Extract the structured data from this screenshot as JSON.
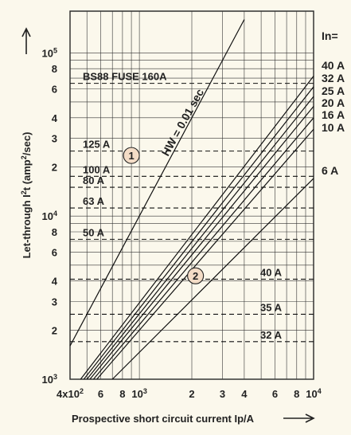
{
  "chart_data": {
    "type": "line",
    "x_scale": "log",
    "y_scale": "log",
    "xlim": [
      400,
      10000
    ],
    "ylim": [
      1000,
      180000
    ],
    "xlabel": "Prospective short circuit current Ip/A",
    "ylabel_main": "Let-through I",
    "ylabel_sup": "2",
    "ylabel_rest": "t (amp",
    "ylabel_sup2": "2",
    "ylabel_end": "/sec)",
    "x_ticks": [
      {
        "value": 400,
        "label_base": "4x10",
        "label_sup": "2"
      },
      {
        "value": 600,
        "label_base": "6",
        "label_sup": ""
      },
      {
        "value": 800,
        "label_base": "8",
        "label_sup": ""
      },
      {
        "value": 1000,
        "label_base": "10",
        "label_sup": "3"
      },
      {
        "value": 2000,
        "label_base": "2",
        "label_sup": ""
      },
      {
        "value": 3000,
        "label_base": "3",
        "label_sup": ""
      },
      {
        "value": 4000,
        "label_base": "4",
        "label_sup": ""
      },
      {
        "value": 6000,
        "label_base": "6",
        "label_sup": ""
      },
      {
        "value": 8000,
        "label_base": "8",
        "label_sup": ""
      },
      {
        "value": 10000,
        "label_base": "10",
        "label_sup": "4"
      }
    ],
    "y_ticks": [
      {
        "value": 1000,
        "label_base": "10",
        "label_sup": "3"
      },
      {
        "value": 2000,
        "label_base": "2",
        "label_sup": ""
      },
      {
        "value": 3000,
        "label_base": "3",
        "label_sup": ""
      },
      {
        "value": 4000,
        "label_base": "4",
        "label_sup": ""
      },
      {
        "value": 6000,
        "label_base": "6",
        "label_sup": ""
      },
      {
        "value": 8000,
        "label_base": "8",
        "label_sup": ""
      },
      {
        "value": 10000,
        "label_base": "10",
        "label_sup": "4"
      },
      {
        "value": 20000,
        "label_base": "2",
        "label_sup": ""
      },
      {
        "value": 30000,
        "label_base": "3",
        "label_sup": ""
      },
      {
        "value": 40000,
        "label_base": "4",
        "label_sup": ""
      },
      {
        "value": 60000,
        "label_base": "6",
        "label_sup": ""
      },
      {
        "value": 80000,
        "label_base": "8",
        "label_sup": ""
      },
      {
        "value": 100000,
        "label_base": "10",
        "label_sup": "5"
      }
    ],
    "fuse_lines": [
      {
        "label": "BS88 FUSE 160A",
        "value": 65000
      },
      {
        "label": "125 A",
        "value": 25000
      },
      {
        "label": "100 A",
        "value": 17500
      },
      {
        "label": "80 A",
        "value": 15000
      },
      {
        "label": "63 A",
        "value": 11200
      },
      {
        "label": "50 A",
        "value": 7200
      },
      {
        "label": "40 A",
        "value": 4100
      },
      {
        "label": "35 A",
        "value": 2500
      },
      {
        "label": "32 A",
        "value": 1700
      }
    ],
    "hw_line": {
      "label": "HW = 0.01 sec",
      "points": [
        [
          400,
          1600
        ],
        [
          4000,
          160000
        ]
      ]
    },
    "in_header": "In=",
    "series": [
      {
        "name": "40 A",
        "points": [
          [
            460,
            1000
          ],
          [
            10000,
            72000
          ]
        ]
      },
      {
        "name": "32 A",
        "points": [
          [
            480,
            1000
          ],
          [
            10000,
            62000
          ]
        ]
      },
      {
        "name": "25 A",
        "points": [
          [
            500,
            1000
          ],
          [
            10000,
            54000
          ]
        ]
      },
      {
        "name": "20 A",
        "points": [
          [
            520,
            1000
          ],
          [
            10000,
            47000
          ]
        ]
      },
      {
        "name": "16 A",
        "points": [
          [
            545,
            1000
          ],
          [
            10000,
            40000
          ]
        ]
      },
      {
        "name": "10 A",
        "points": [
          [
            570,
            1000
          ],
          [
            10000,
            34000
          ]
        ]
      },
      {
        "name": "6 A",
        "points": [
          [
            700,
            1000
          ],
          [
            10000,
            17000
          ]
        ]
      }
    ],
    "markers": [
      {
        "label": "1",
        "x": 900,
        "y": 23500
      },
      {
        "label": "2",
        "x": 2100,
        "y": 4300
      }
    ]
  }
}
